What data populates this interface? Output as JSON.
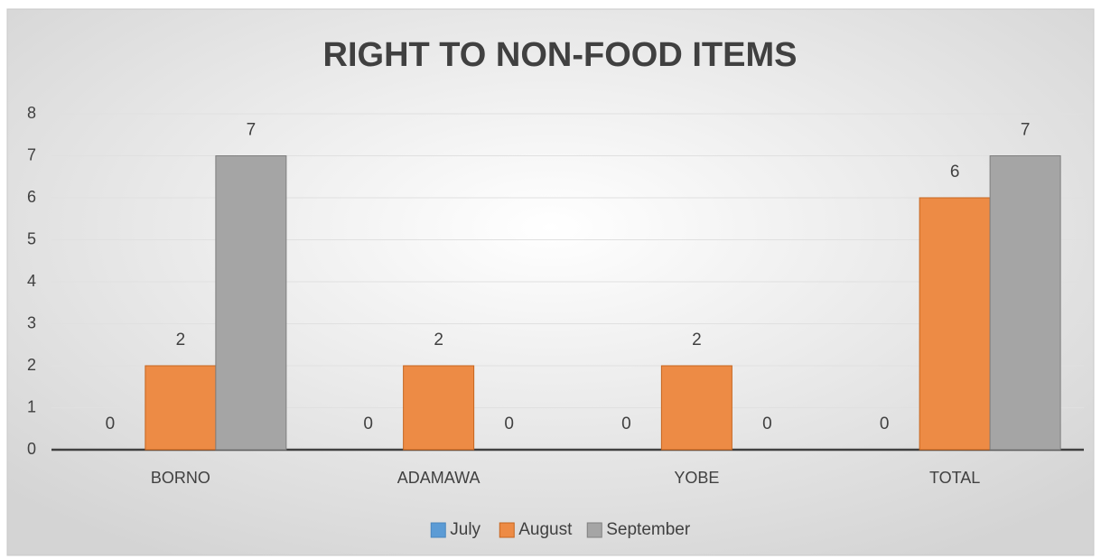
{
  "chart_data": {
    "type": "bar",
    "title": "RIGHT TO NON-FOOD ITEMS",
    "categories": [
      "BORNO",
      "ADAMAWA",
      "YOBE",
      "TOTAL"
    ],
    "series": [
      {
        "name": "July",
        "color": "#5b9bd5",
        "values": [
          0,
          0,
          0,
          0
        ]
      },
      {
        "name": "August",
        "color": "#ed8b45",
        "values": [
          2,
          2,
          2,
          6
        ]
      },
      {
        "name": "September",
        "color": "#a5a5a5",
        "values": [
          7,
          0,
          0,
          7
        ]
      }
    ],
    "ylim": [
      0,
      8
    ],
    "yticks": [
      0,
      1,
      2,
      3,
      4,
      5,
      6,
      7,
      8
    ],
    "grid": true,
    "legend": "bottom"
  }
}
